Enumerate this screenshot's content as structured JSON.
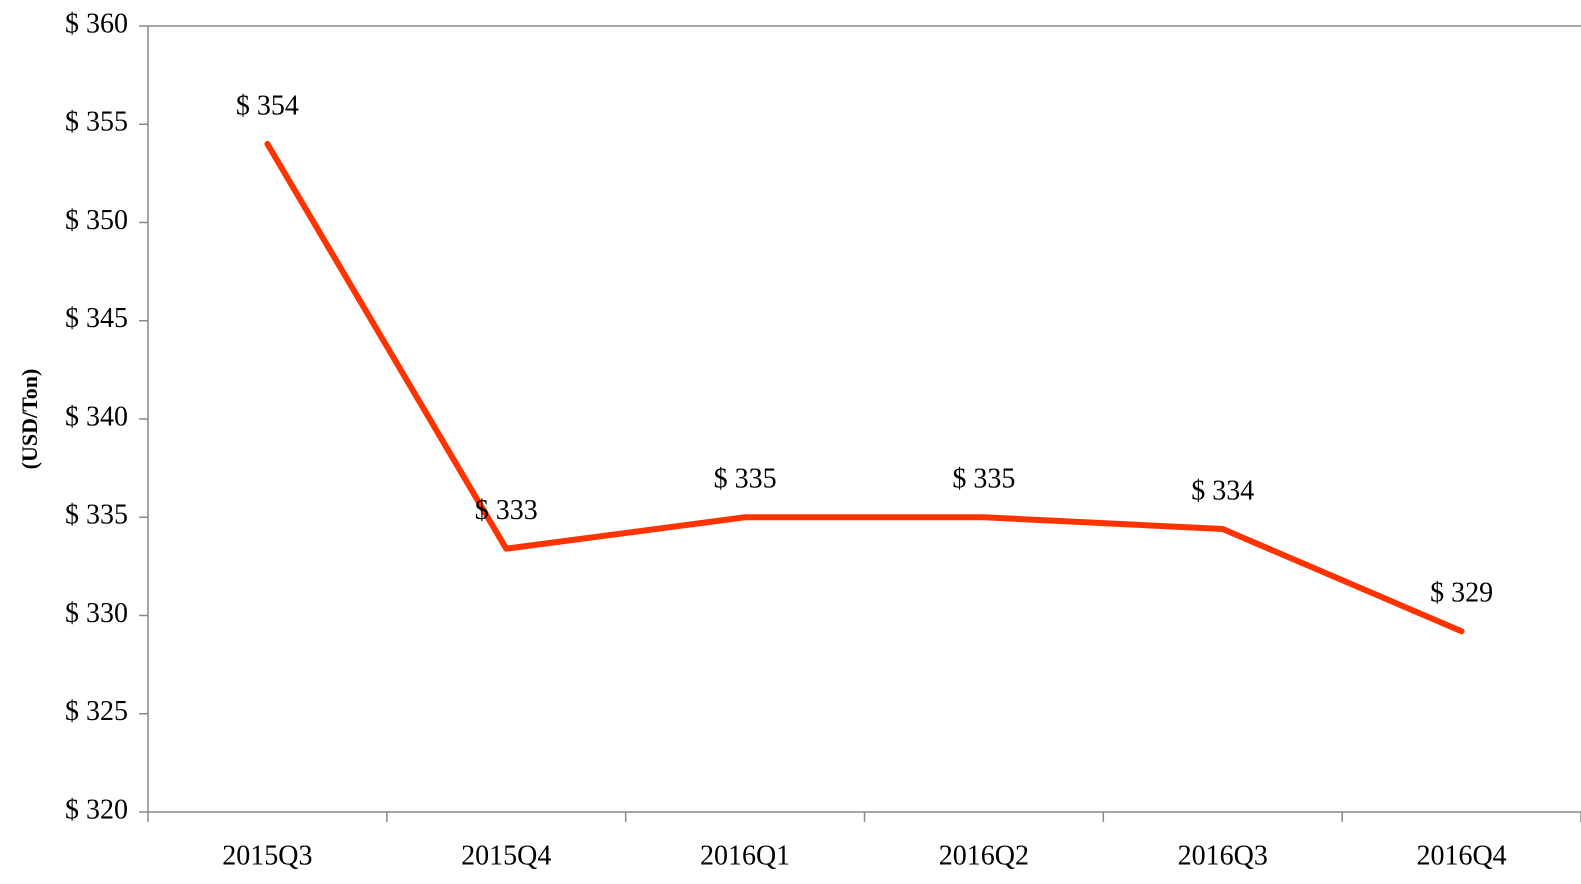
{
  "chart_data": {
    "type": "line",
    "y_label": "(USD/Ton)",
    "categories": [
      "2015Q3",
      "2015Q4",
      "2016Q1",
      "2016Q2",
      "2016Q3",
      "2016Q4"
    ],
    "series": [
      {
        "color": "#ff3300",
        "values": [
          354,
          333.4,
          335,
          335,
          334.4,
          329.2
        ],
        "value_labels": [
          "$ 354",
          "$ 333",
          "$ 335",
          "$ 335",
          "$ 334",
          "$ 329"
        ]
      }
    ],
    "ylim": [
      320,
      360
    ],
    "yticks": [
      {
        "value": 320,
        "label": "$ 320"
      },
      {
        "value": 325,
        "label": "$ 325"
      },
      {
        "value": 330,
        "label": "$ 330"
      },
      {
        "value": 335,
        "label": "$ 335"
      },
      {
        "value": 340,
        "label": "$ 340"
      },
      {
        "value": 345,
        "label": "$ 345"
      },
      {
        "value": 350,
        "label": "$ 350"
      },
      {
        "value": 355,
        "label": "$ 355"
      },
      {
        "value": 360,
        "label": "$ 360"
      }
    ]
  }
}
